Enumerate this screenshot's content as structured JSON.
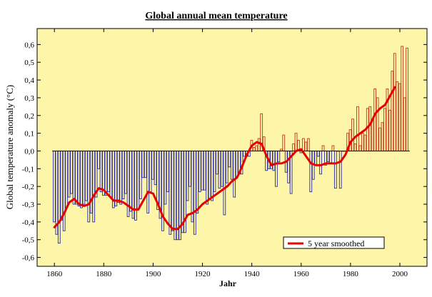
{
  "colors": {
    "plot_background": "#fdf5a8",
    "negative_bars": "#2a2aa8",
    "positive_bars": "#c4331c",
    "smoothed_line": "#e60000",
    "frame": "#000000"
  },
  "chart_data": {
    "type": "bar",
    "title": "Global annual mean temperature",
    "xlabel": "Jahr",
    "ylabel": "Global temperature anomaly (°C)",
    "xlim": [
      1853,
      2011
    ],
    "ylim": [
      -0.65,
      0.69
    ],
    "x_ticks": [
      1860,
      1880,
      1900,
      1920,
      1940,
      1960,
      1980,
      2000
    ],
    "y_ticks": [
      "0,6",
      "0,5",
      "0,4",
      "0,3",
      "0,2",
      "0,1",
      "0,0",
      "-0,1",
      "-0,2",
      "-0,3",
      "-0,4",
      "-0,5",
      "-0,6"
    ],
    "y_tick_values": [
      0.6,
      0.5,
      0.4,
      0.3,
      0.2,
      0.1,
      0.0,
      -0.1,
      -0.2,
      -0.3,
      -0.4,
      -0.5,
      -0.6
    ],
    "grid": false,
    "legend_position": "bottom-right",
    "years": [
      1860,
      1861,
      1862,
      1863,
      1864,
      1865,
      1866,
      1867,
      1868,
      1869,
      1870,
      1871,
      1872,
      1873,
      1874,
      1875,
      1876,
      1877,
      1878,
      1879,
      1880,
      1881,
      1882,
      1883,
      1884,
      1885,
      1886,
      1887,
      1888,
      1889,
      1890,
      1891,
      1892,
      1893,
      1894,
      1895,
      1896,
      1897,
      1898,
      1899,
      1900,
      1901,
      1902,
      1903,
      1904,
      1905,
      1906,
      1907,
      1908,
      1909,
      1910,
      1911,
      1912,
      1913,
      1914,
      1915,
      1916,
      1917,
      1918,
      1919,
      1920,
      1921,
      1922,
      1923,
      1924,
      1925,
      1926,
      1927,
      1928,
      1929,
      1930,
      1931,
      1932,
      1933,
      1934,
      1935,
      1936,
      1937,
      1938,
      1939,
      1940,
      1941,
      1942,
      1943,
      1944,
      1945,
      1946,
      1947,
      1948,
      1949,
      1950,
      1951,
      1952,
      1953,
      1954,
      1955,
      1956,
      1957,
      1958,
      1959,
      1960,
      1961,
      1962,
      1963,
      1964,
      1965,
      1966,
      1967,
      1968,
      1969,
      1970,
      1971,
      1972,
      1973,
      1974,
      1975,
      1976,
      1977,
      1978,
      1979,
      1980,
      1981,
      1982,
      1983,
      1984,
      1985,
      1986,
      1987,
      1988,
      1989,
      1990,
      1991,
      1992,
      1993,
      1994,
      1995,
      1996,
      1997,
      1998,
      1999,
      2000,
      2001,
      2002,
      2003
    ],
    "values": [
      -0.4,
      -0.47,
      -0.52,
      -0.39,
      -0.45,
      -0.32,
      -0.26,
      -0.24,
      -0.3,
      -0.3,
      -0.31,
      -0.32,
      -0.3,
      -0.28,
      -0.4,
      -0.35,
      -0.4,
      -0.26,
      -0.1,
      -0.23,
      -0.25,
      -0.25,
      -0.23,
      -0.26,
      -0.32,
      -0.31,
      -0.29,
      -0.3,
      -0.27,
      -0.24,
      -0.37,
      -0.34,
      -0.38,
      -0.39,
      -0.33,
      -0.27,
      -0.15,
      -0.15,
      -0.35,
      -0.23,
      -0.16,
      -0.19,
      -0.33,
      -0.38,
      -0.45,
      -0.3,
      -0.23,
      -0.47,
      -0.45,
      -0.5,
      -0.5,
      -0.5,
      -0.46,
      -0.46,
      -0.28,
      -0.2,
      -0.4,
      -0.47,
      -0.35,
      -0.23,
      -0.22,
      -0.22,
      -0.3,
      -0.27,
      -0.28,
      -0.23,
      -0.13,
      -0.21,
      -0.2,
      -0.36,
      -0.18,
      -0.09,
      -0.16,
      -0.26,
      -0.15,
      -0.13,
      -0.13,
      -0.03,
      -0.03,
      -0.03,
      0.06,
      0.02,
      0.03,
      0.07,
      0.21,
      0.08,
      -0.11,
      -0.1,
      -0.1,
      -0.11,
      -0.2,
      -0.06,
      0.01,
      0.09,
      -0.12,
      -0.18,
      -0.24,
      0.04,
      0.1,
      0.06,
      -0.01,
      0.07,
      0.05,
      0.07,
      -0.23,
      -0.16,
      -0.08,
      -0.03,
      -0.13,
      0.03,
      -0.08,
      -0.06,
      -0.07,
      0.03,
      -0.21,
      0.0,
      -0.21,
      0.0,
      0.0,
      0.1,
      0.12,
      0.18,
      0.04,
      0.25,
      0.03,
      0.1,
      0.09,
      0.24,
      0.25,
      0.17,
      0.35,
      0.3,
      0.13,
      0.16,
      0.24,
      0.35,
      0.23,
      0.45,
      0.55,
      0.39,
      0.38,
      0.59,
      0.3,
      0.58
    ],
    "smoothed": {
      "name": "5 year smoothed",
      "x": [
        1860,
        1862,
        1864,
        1866,
        1868,
        1870,
        1872,
        1874,
        1876,
        1878,
        1880,
        1882,
        1884,
        1886,
        1888,
        1890,
        1892,
        1894,
        1896,
        1898,
        1900,
        1902,
        1904,
        1906,
        1908,
        1910,
        1912,
        1914,
        1916,
        1918,
        1920,
        1922,
        1924,
        1926,
        1928,
        1930,
        1932,
        1934,
        1936,
        1938,
        1940,
        1942,
        1944,
        1946,
        1948,
        1950,
        1952,
        1954,
        1956,
        1958,
        1960,
        1962,
        1964,
        1966,
        1968,
        1970,
        1972,
        1974,
        1976,
        1978,
        1980,
        1982,
        1984,
        1986,
        1988,
        1990,
        1992,
        1994,
        1996,
        1998
      ],
      "y": [
        -0.43,
        -0.4,
        -0.35,
        -0.29,
        -0.27,
        -0.3,
        -0.31,
        -0.3,
        -0.25,
        -0.21,
        -0.22,
        -0.25,
        -0.28,
        -0.28,
        -0.29,
        -0.31,
        -0.33,
        -0.33,
        -0.28,
        -0.23,
        -0.24,
        -0.3,
        -0.37,
        -0.41,
        -0.44,
        -0.44,
        -0.41,
        -0.36,
        -0.35,
        -0.33,
        -0.3,
        -0.28,
        -0.26,
        -0.24,
        -0.22,
        -0.2,
        -0.17,
        -0.15,
        -0.09,
        -0.02,
        0.03,
        0.05,
        0.04,
        -0.03,
        -0.08,
        -0.07,
        -0.07,
        -0.06,
        -0.03,
        0.0,
        0.01,
        -0.03,
        -0.07,
        -0.08,
        -0.08,
        -0.07,
        -0.07,
        -0.07,
        -0.06,
        -0.02,
        0.05,
        0.08,
        0.1,
        0.12,
        0.15,
        0.21,
        0.24,
        0.26,
        0.31,
        0.36
      ]
    }
  }
}
